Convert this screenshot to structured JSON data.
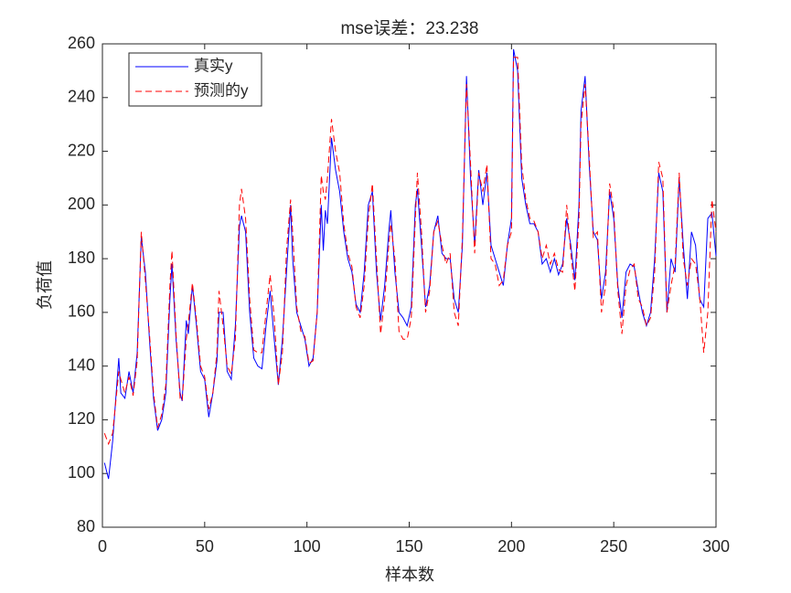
{
  "chart_data": {
    "type": "line",
    "title": "mse误差：23.238",
    "xlabel": "样本数",
    "ylabel": "负荷值",
    "x": [
      1,
      3,
      5,
      8,
      9,
      11,
      13,
      15,
      17,
      19,
      21,
      23,
      25,
      27,
      29,
      31,
      33,
      34,
      36,
      38,
      39,
      41,
      42,
      44,
      46,
      48,
      50,
      52,
      54,
      56,
      57,
      59,
      61,
      63,
      65,
      67,
      68,
      70,
      72,
      74,
      76,
      78,
      80,
      82,
      84,
      86,
      88,
      90,
      92,
      93,
      95,
      97,
      99,
      101,
      103,
      105,
      107,
      108,
      109,
      110,
      112,
      114,
      116,
      118,
      120,
      122,
      124,
      126,
      128,
      130,
      132,
      134,
      136,
      138,
      140,
      141,
      143,
      145,
      147,
      149,
      151,
      153,
      154,
      156,
      158,
      160,
      162,
      164,
      166,
      168,
      170,
      172,
      174,
      176,
      178,
      180,
      182,
      184,
      186,
      188,
      190,
      192,
      194,
      196,
      198,
      200,
      201,
      203,
      205,
      207,
      209,
      211,
      213,
      215,
      217,
      219,
      221,
      223,
      225,
      227,
      229,
      231,
      233,
      234,
      236,
      238,
      240,
      242,
      244,
      246,
      248,
      250,
      252,
      254,
      256,
      258,
      260,
      262,
      264,
      266,
      268,
      270,
      272,
      274,
      276,
      278,
      280,
      282,
      284,
      286,
      288,
      290,
      292,
      294,
      296,
      298,
      300
    ],
    "series": [
      {
        "name": "真实y",
        "color": "#0000ff",
        "dash": false,
        "values": [
          104,
          98,
          112,
          143,
          130,
          128,
          138,
          130,
          145,
          188,
          175,
          150,
          128,
          116,
          120,
          130,
          165,
          178,
          150,
          130,
          127,
          157,
          152,
          170,
          155,
          138,
          135,
          121,
          130,
          142,
          160,
          160,
          138,
          135,
          155,
          192,
          196,
          190,
          160,
          143,
          140,
          139,
          155,
          168,
          150,
          133,
          150,
          175,
          200,
          180,
          160,
          155,
          150,
          140,
          143,
          160,
          200,
          183,
          198,
          193,
          225,
          213,
          205,
          190,
          180,
          175,
          163,
          160,
          175,
          200,
          205,
          175,
          157,
          170,
          190,
          198,
          175,
          160,
          158,
          155,
          162,
          200,
          206,
          185,
          162,
          170,
          190,
          196,
          182,
          180,
          180,
          165,
          160,
          185,
          248,
          210,
          185,
          213,
          200,
          212,
          185,
          180,
          175,
          170,
          185,
          195,
          258,
          250,
          210,
          200,
          193,
          193,
          190,
          178,
          180,
          175,
          180,
          174,
          178,
          195,
          185,
          172,
          200,
          235,
          248,
          215,
          190,
          187,
          165,
          175,
          205,
          195,
          170,
          158,
          175,
          178,
          177,
          168,
          160,
          155,
          160,
          180,
          212,
          205,
          160,
          180,
          175,
          210,
          185,
          165,
          190,
          185,
          165,
          162,
          195,
          197,
          181
        ]
      },
      {
        "name": "预测的y",
        "color": "#ff0000",
        "dash": true,
        "values": [
          115,
          111,
          115,
          138,
          135,
          130,
          136,
          129,
          142,
          190,
          172,
          152,
          130,
          117,
          122,
          133,
          170,
          183,
          152,
          128,
          127,
          150,
          156,
          171,
          157,
          140,
          136,
          124,
          130,
          145,
          168,
          155,
          140,
          137,
          150,
          200,
          206,
          195,
          165,
          146,
          145,
          145,
          160,
          174,
          158,
          133,
          145,
          183,
          202,
          190,
          162,
          153,
          151,
          141,
          142,
          160,
          211,
          205,
          202,
          210,
          232,
          220,
          212,
          193,
          182,
          177,
          162,
          158,
          170,
          195,
          208,
          180,
          152,
          165,
          185,
          193,
          180,
          153,
          150,
          150,
          158,
          195,
          212,
          190,
          160,
          168,
          190,
          194,
          185,
          178,
          182,
          160,
          155,
          188,
          245,
          215,
          182,
          212,
          205,
          215,
          180,
          178,
          170,
          172,
          185,
          190,
          255,
          255,
          215,
          202,
          195,
          194,
          190,
          180,
          185,
          178,
          182,
          176,
          175,
          200,
          182,
          168,
          195,
          230,
          245,
          218,
          188,
          190,
          160,
          170,
          208,
          198,
          168,
          152,
          170,
          176,
          178,
          165,
          162,
          155,
          158,
          175,
          216,
          210,
          160,
          170,
          178,
          212,
          180,
          170,
          180,
          178,
          166,
          145,
          160,
          202,
          190
        ]
      }
    ],
    "xlim": [
      0,
      300
    ],
    "xticks": [
      0,
      50,
      100,
      150,
      200,
      250,
      300
    ],
    "ylim": [
      80,
      260
    ],
    "yticks": [
      80,
      100,
      120,
      140,
      160,
      180,
      200,
      220,
      240,
      260
    ],
    "legend": "top-left",
    "grid": false
  }
}
